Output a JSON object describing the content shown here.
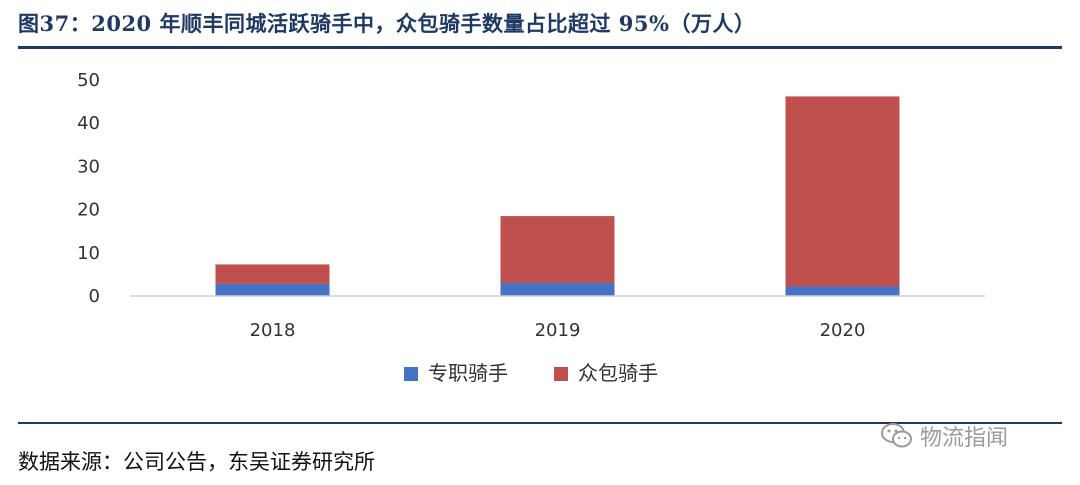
{
  "title": "图37：2020 年顺丰同城活跃骑手中，众包骑手数量占比超过 95%（万人）",
  "source": "数据来源：公司公告，东吴证券研究所",
  "watermark": {
    "text": "物流指闻",
    "icon": "wechat-icon"
  },
  "chart_data": {
    "type": "bar",
    "stacked": true,
    "categories": [
      "2018",
      "2019",
      "2020"
    ],
    "series": [
      {
        "name": "专职骑手",
        "values": [
          2.8,
          3.0,
          2.2
        ],
        "color": "#4472c4"
      },
      {
        "name": "众包骑手",
        "values": [
          4.5,
          15.5,
          44.0
        ],
        "color": "#c0504d"
      }
    ],
    "ylim": [
      0,
      50
    ],
    "yticks": [
      0,
      10,
      20,
      30,
      40,
      50
    ],
    "grid": false,
    "legend": "bottom-center"
  }
}
